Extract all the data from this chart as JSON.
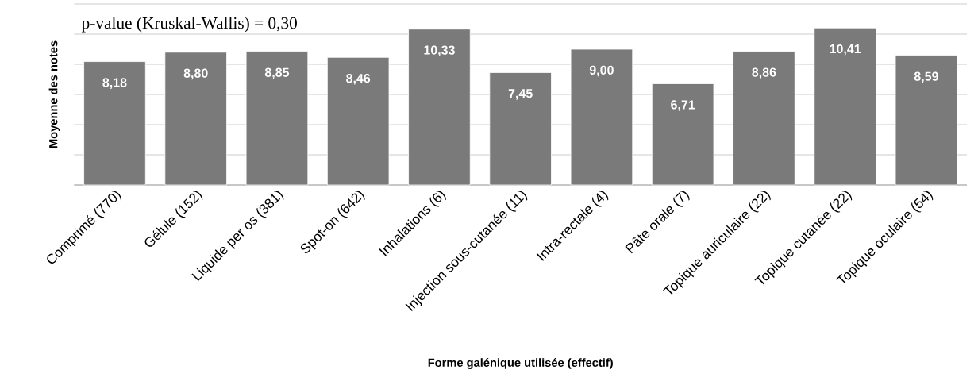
{
  "chart_data": {
    "type": "bar",
    "categories": [
      "Comprimé (770)",
      "Gélule (152)",
      "Liquide per os (381)",
      "Spot-on (642)",
      "Inhalations (6)",
      "Injection sous-cutanée (11)",
      "Intra-rectale (4)",
      "Pâte orale (7)",
      "Topique auriculaire (22)",
      "Topique cutanée (22)",
      "Topique oculaire (54)"
    ],
    "values": [
      8.18,
      8.8,
      8.85,
      8.46,
      10.33,
      7.45,
      9.0,
      6.71,
      8.86,
      10.41,
      8.59
    ],
    "value_labels": [
      "8,18",
      "8,80",
      "8,85",
      "8,46",
      "10,33",
      "7,45",
      "9,00",
      "6,71",
      "8,86",
      "10,41",
      "8,59"
    ],
    "color": "#7a7a7a",
    "ylim": [
      0,
      12
    ],
    "yticks": [
      {
        "value": 0,
        "label": null
      },
      {
        "value": 2,
        "label": null
      },
      {
        "value": 4,
        "label": null
      },
      {
        "value": 6,
        "label": null
      },
      {
        "value": 8,
        "label": null
      },
      {
        "value": 10,
        "label": null
      },
      {
        "value": 12,
        "label": null
      }
    ],
    "grid": "y",
    "xlabel": "Forme galénique utilisée (effectif)",
    "ylabel": "Moyenne des notes",
    "annotations": [
      "p-value (Kruskal-Wallis) = 0,30"
    ]
  }
}
